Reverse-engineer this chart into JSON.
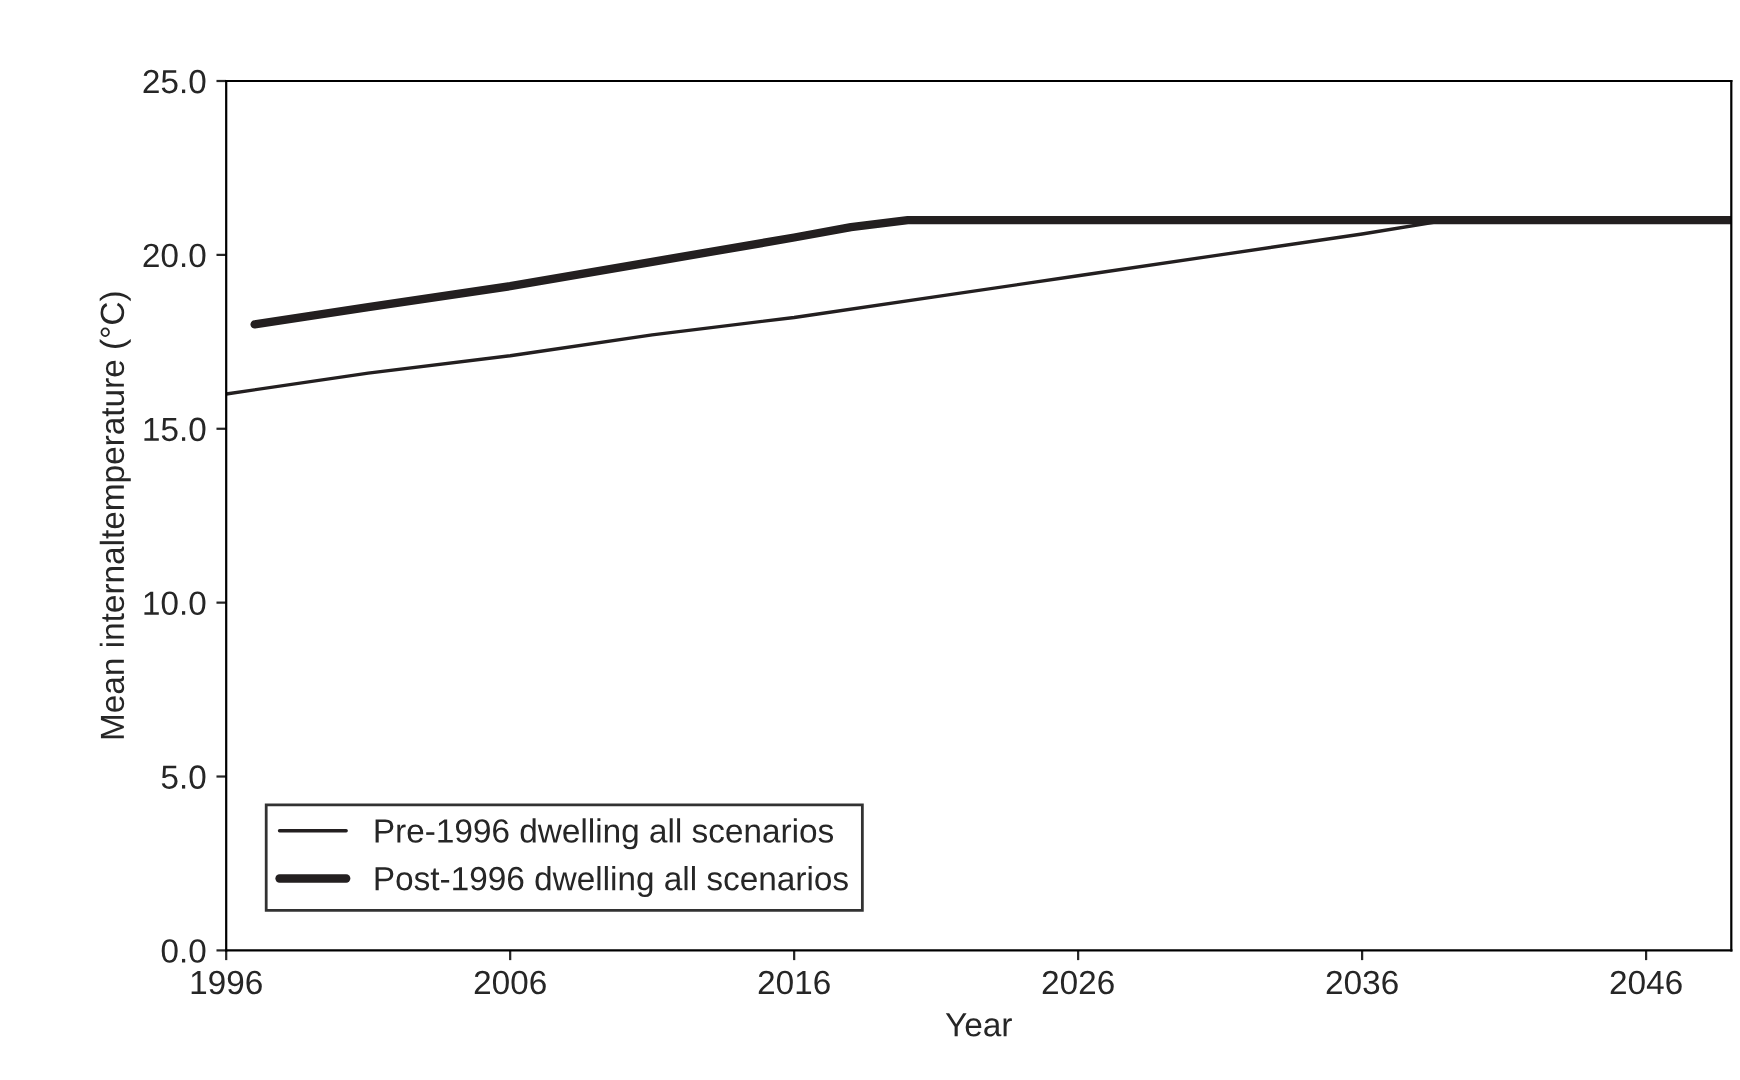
{
  "chart_data": {
    "type": "line",
    "xlabel": "Year",
    "ylabel": "Mean internaltemperature (°C)",
    "xlim": [
      1996,
      2049
    ],
    "xticks": [
      1996,
      2006,
      2016,
      2026,
      2036,
      2046
    ],
    "ylim": [
      0,
      25
    ],
    "yticks": [
      {
        "value": 0,
        "label": "0.0"
      },
      {
        "value": 5,
        "label": "5.0"
      },
      {
        "value": 10,
        "label": "10.0"
      },
      {
        "value": 15,
        "label": "15.0"
      },
      {
        "value": 20,
        "label": "20.0"
      },
      {
        "value": 25,
        "label": "25.0"
      }
    ],
    "grid": false,
    "legend": "bottom left",
    "marker": "none",
    "line_style": "solid",
    "series": [
      {
        "name": "Pre-1996 dwelling all scenarios",
        "color": "#231f20",
        "x": [
          1996,
          2001,
          2006,
          2011,
          2016,
          2021,
          2026,
          2031,
          2036,
          2039,
          2049
        ],
        "values": [
          16.0,
          16.6,
          17.1,
          17.7,
          18.2,
          18.8,
          19.4,
          20.0,
          20.6,
          21.0,
          21.0
        ]
      },
      {
        "name": "Post-1996 dwelling all scenarios",
        "color": "#231f20",
        "x": [
          1997,
          2001,
          2006,
          2011,
          2016,
          2018,
          2020,
          2049
        ],
        "values": [
          18.0,
          18.5,
          19.1,
          19.8,
          20.5,
          20.8,
          21.0,
          21.0
        ]
      }
    ]
  }
}
